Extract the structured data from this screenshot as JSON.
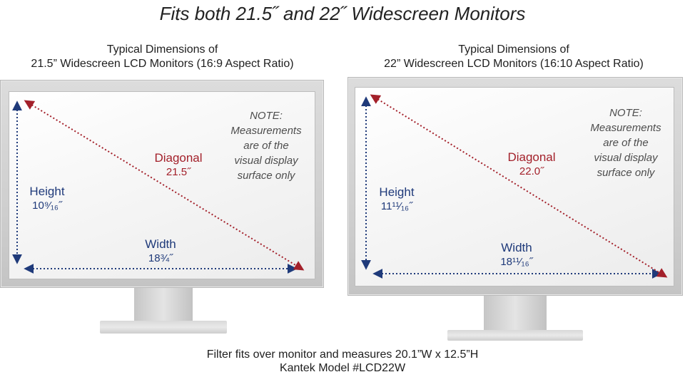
{
  "title": "Fits both 21.5˝ and 22˝ Widescreen Monitors",
  "colors": {
    "dimension_blue": "#1f3a7a",
    "diagonal_red": "#a3202a",
    "note_gray": "#4d4d4d"
  },
  "monitors": [
    {
      "heading_line1": "Typical Dimensions of",
      "heading_line2": "21.5” Widescreen LCD Monitors (16:9 Aspect Ratio)",
      "diagonal_label": "Diagonal",
      "diagonal_value": "21.5˝",
      "height_label": "Height",
      "height_value": "10⁹⁄₁₆˝",
      "width_label": "Width",
      "width_value": "18¾˝",
      "note_lines": [
        "NOTE:",
        "Measurements",
        "are of the",
        "visual display",
        "surface only"
      ]
    },
    {
      "heading_line1": "Typical Dimensions of",
      "heading_line2": "22” Widescreen LCD Monitors (16:10 Aspect Ratio)",
      "diagonal_label": "Diagonal",
      "diagonal_value": "22.0˝",
      "height_label": "Height",
      "height_value": "11¹¹⁄₁₆˝",
      "width_label": "Width",
      "width_value": "18¹¹⁄₁₆˝",
      "note_lines": [
        "NOTE:",
        "Measurements",
        "are of the",
        "visual display",
        "surface only"
      ]
    }
  ],
  "footer": {
    "line1": "Filter fits over monitor and measures 20.1”W x 12.5”H",
    "line2": "Kantek Model #LCD22W"
  }
}
